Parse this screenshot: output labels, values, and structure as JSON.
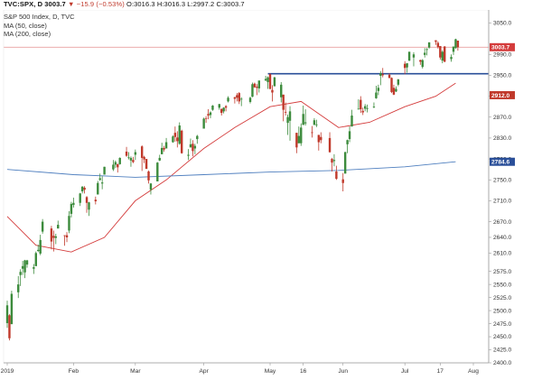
{
  "header": {
    "symbol": "TVC:SPX, D",
    "last": "3003.7",
    "change": "▼ −15.9 (−0.53%)",
    "ohlc": "O:3016.3 H:3016.3 L:2997.2 C:3003.7"
  },
  "legend": {
    "title": "S&P 500 Index, D, TVC",
    "ma50": "MA (50, close)",
    "ma200": "MA (200, close)"
  },
  "colors": {
    "up": "#3c8b3c",
    "down": "#c0392b",
    "ma50": "#d43c3c",
    "ma200": "#4f7fbf",
    "resistance": "#2a4f99",
    "price_line": "#e9a0a0"
  },
  "chart_data": {
    "type": "candlestick",
    "ylim": [
      2400,
      3075
    ],
    "yticks": [
      2400,
      2425,
      2450,
      2475,
      2500,
      2525,
      2550,
      2575,
      2610,
      2640,
      2670,
      2710,
      2750,
      2790,
      2830,
      2870,
      2910,
      2950,
      2990,
      3050
    ],
    "xticks": [
      "2019",
      "Feb",
      "Mar",
      "Apr",
      "May",
      "16",
      "Jun",
      "Jul",
      "17",
      "Aug"
    ],
    "x_axis_dates": [
      "2019-01-02",
      "2019-02-01",
      "2019-03-01",
      "2019-04-01",
      "2019-05-01",
      "2019-05-16",
      "2019-06-03",
      "2019-07-01",
      "2019-07-17",
      "2019-08-01"
    ],
    "price_labels": [
      {
        "text": "3003.7",
        "value": 3003.7,
        "color": "#d43c3c"
      },
      {
        "text": "2912.0",
        "value": 2912.0,
        "color": "#c0392b"
      },
      {
        "text": "2784.6",
        "value": 2784.6,
        "color": "#2a4f99"
      }
    ],
    "horizontal_lines": [
      {
        "name": "resistance",
        "value": 2953,
        "from": "2019-04-30",
        "to": "2019-07-31"
      },
      {
        "name": "last",
        "value": 3003.7
      }
    ],
    "series": [
      {
        "name": "MA (50, close)",
        "points": [
          [
            "2019-01-02",
            2680
          ],
          [
            "2019-01-15",
            2625
          ],
          [
            "2019-01-31",
            2612
          ],
          [
            "2019-02-15",
            2640
          ],
          [
            "2019-03-01",
            2710
          ],
          [
            "2019-03-15",
            2750
          ],
          [
            "2019-04-01",
            2810
          ],
          [
            "2019-04-15",
            2850
          ],
          [
            "2019-05-01",
            2890
          ],
          [
            "2019-05-15",
            2900
          ],
          [
            "2019-06-01",
            2850
          ],
          [
            "2019-06-15",
            2860
          ],
          [
            "2019-07-01",
            2890
          ],
          [
            "2019-07-15",
            2910
          ],
          [
            "2019-07-24",
            2935
          ]
        ]
      },
      {
        "name": "MA (200, close)",
        "points": [
          [
            "2019-01-02",
            2770
          ],
          [
            "2019-02-01",
            2760
          ],
          [
            "2019-03-01",
            2755
          ],
          [
            "2019-04-01",
            2760
          ],
          [
            "2019-05-01",
            2765
          ],
          [
            "2019-06-01",
            2768
          ],
          [
            "2019-07-01",
            2775
          ],
          [
            "2019-07-24",
            2784.6
          ]
        ]
      }
    ],
    "candles": [
      [
        "2019-01-02",
        2476,
        2519,
        2467,
        2510
      ],
      [
        "2019-01-03",
        2491,
        2493,
        2443,
        2447
      ],
      [
        "2019-01-04",
        2474,
        2538,
        2474,
        2532
      ],
      [
        "2019-01-07",
        2535,
        2566,
        2524,
        2550
      ],
      [
        "2019-01-08",
        2568,
        2579,
        2547,
        2574
      ],
      [
        "2019-01-09",
        2580,
        2595,
        2568,
        2585
      ],
      [
        "2019-01-10",
        2573,
        2597,
        2562,
        2596
      ],
      [
        "2019-01-11",
        2588,
        2597,
        2582,
        2596
      ],
      [
        "2019-01-14",
        2580,
        2589,
        2570,
        2583
      ],
      [
        "2019-01-15",
        2585,
        2613,
        2585,
        2610
      ],
      [
        "2019-01-16",
        2614,
        2626,
        2612,
        2616
      ],
      [
        "2019-01-17",
        2609,
        2645,
        2606,
        2635
      ],
      [
        "2019-01-18",
        2651,
        2675,
        2647,
        2670
      ],
      [
        "2019-01-22",
        2657,
        2662,
        2617,
        2632
      ],
      [
        "2019-01-23",
        2643,
        2653,
        2613,
        2639
      ],
      [
        "2019-01-24",
        2639,
        2647,
        2627,
        2642
      ],
      [
        "2019-01-25",
        2657,
        2672,
        2657,
        2664
      ],
      [
        "2019-01-28",
        2644,
        2644,
        2624,
        2643
      ],
      [
        "2019-01-29",
        2644,
        2650,
        2631,
        2640
      ],
      [
        "2019-01-30",
        2653,
        2690,
        2648,
        2681
      ],
      [
        "2019-01-31",
        2685,
        2708,
        2678,
        2704
      ],
      [
        "2019-02-01",
        2702,
        2716,
        2697,
        2706
      ],
      [
        "2019-02-04",
        2706,
        2725,
        2700,
        2724
      ],
      [
        "2019-02-05",
        2728,
        2738,
        2724,
        2737
      ],
      [
        "2019-02-06",
        2735,
        2738,
        2724,
        2731
      ],
      [
        "2019-02-07",
        2717,
        2719,
        2687,
        2706
      ],
      [
        "2019-02-08",
        2693,
        2708,
        2681,
        2707
      ],
      [
        "2019-02-11",
        2712,
        2718,
        2703,
        2709
      ],
      [
        "2019-02-12",
        2722,
        2748,
        2722,
        2744
      ],
      [
        "2019-02-13",
        2750,
        2762,
        2748,
        2753
      ],
      [
        "2019-02-14",
        2743,
        2757,
        2732,
        2745
      ],
      [
        "2019-02-15",
        2760,
        2775,
        2760,
        2775
      ],
      [
        "2019-02-19",
        2770,
        2788,
        2767,
        2779
      ],
      [
        "2019-02-20",
        2779,
        2787,
        2773,
        2784
      ],
      [
        "2019-02-21",
        2780,
        2781,
        2764,
        2774
      ],
      [
        "2019-02-22",
        2780,
        2793,
        2779,
        2792
      ],
      [
        "2019-02-25",
        2804,
        2813,
        2794,
        2796
      ],
      [
        "2019-02-26",
        2792,
        2803,
        2789,
        2793
      ],
      [
        "2019-02-27",
        2787,
        2795,
        2775,
        2792
      ],
      [
        "2019-02-28",
        2788,
        2794,
        2782,
        2784
      ],
      [
        "2019-03-01",
        2798,
        2808,
        2788,
        2803
      ],
      [
        "2019-03-04",
        2814,
        2816,
        2767,
        2792
      ],
      [
        "2019-03-05",
        2794,
        2796,
        2782,
        2789
      ],
      [
        "2019-03-06",
        2790,
        2790,
        2771,
        2771
      ],
      [
        "2019-03-07",
        2766,
        2768,
        2743,
        2749
      ],
      [
        "2019-03-08",
        2731,
        2744,
        2722,
        2743
      ],
      [
        "2019-03-11",
        2747,
        2784,
        2747,
        2783
      ],
      [
        "2019-03-12",
        2787,
        2798,
        2786,
        2792
      ],
      [
        "2019-03-13",
        2799,
        2821,
        2799,
        2811
      ],
      [
        "2019-03-14",
        2811,
        2815,
        2804,
        2808
      ],
      [
        "2019-03-15",
        2810,
        2830,
        2810,
        2822
      ],
      [
        "2019-03-18",
        2822,
        2835,
        2821,
        2833
      ],
      [
        "2019-03-19",
        2840,
        2852,
        2823,
        2832
      ],
      [
        "2019-03-20",
        2831,
        2843,
        2812,
        2824
      ],
      [
        "2019-03-21",
        2819,
        2860,
        2817,
        2854
      ],
      [
        "2019-03-22",
        2844,
        2846,
        2800,
        2801
      ],
      [
        "2019-03-25",
        2796,
        2809,
        2788,
        2798
      ],
      [
        "2019-03-26",
        2812,
        2829,
        2812,
        2818
      ],
      [
        "2019-03-27",
        2819,
        2826,
        2795,
        2805
      ],
      [
        "2019-03-28",
        2810,
        2819,
        2799,
        2815
      ],
      [
        "2019-03-29",
        2828,
        2836,
        2819,
        2834
      ],
      [
        "2019-04-01",
        2848,
        2869,
        2848,
        2867
      ],
      [
        "2019-04-02",
        2868,
        2872,
        2859,
        2867
      ],
      [
        "2019-04-03",
        2876,
        2885,
        2866,
        2873
      ],
      [
        "2019-04-04",
        2874,
        2881,
        2868,
        2879
      ],
      [
        "2019-04-05",
        2884,
        2893,
        2882,
        2892
      ],
      [
        "2019-04-08",
        2888,
        2895,
        2884,
        2895
      ],
      [
        "2019-04-09",
        2886,
        2886,
        2873,
        2878
      ],
      [
        "2019-04-10",
        2881,
        2889,
        2877,
        2888
      ],
      [
        "2019-04-11",
        2891,
        2893,
        2881,
        2888
      ],
      [
        "2019-04-12",
        2900,
        2910,
        2898,
        2907
      ],
      [
        "2019-04-15",
        2908,
        2909,
        2896,
        2905
      ],
      [
        "2019-04-16",
        2912,
        2916,
        2900,
        2907
      ],
      [
        "2019-04-17",
        2916,
        2918,
        2895,
        2900
      ],
      [
        "2019-04-18",
        2904,
        2908,
        2891,
        2905
      ],
      [
        "2019-04-22",
        2899,
        2909,
        2896,
        2907
      ],
      [
        "2019-04-23",
        2909,
        2936,
        2908,
        2933
      ],
      [
        "2019-04-24",
        2934,
        2936,
        2926,
        2927
      ],
      [
        "2019-04-25",
        2928,
        2933,
        2912,
        2926
      ],
      [
        "2019-04-26",
        2925,
        2939,
        2917,
        2940
      ],
      [
        "2019-04-29",
        2940,
        2949,
        2939,
        2943
      ],
      [
        "2019-04-30",
        2937,
        2948,
        2924,
        2946
      ],
      [
        "2019-05-01",
        2952,
        2954,
        2923,
        2924
      ],
      [
        "2019-05-02",
        2922,
        2931,
        2900,
        2917
      ],
      [
        "2019-05-03",
        2929,
        2947,
        2929,
        2946
      ],
      [
        "2019-05-06",
        2908,
        2937,
        2898,
        2932
      ],
      [
        "2019-05-07",
        2913,
        2913,
        2862,
        2884
      ],
      [
        "2019-05-08",
        2880,
        2898,
        2873,
        2879
      ],
      [
        "2019-05-09",
        2859,
        2875,
        2836,
        2870
      ],
      [
        "2019-05-10",
        2863,
        2891,
        2825,
        2881
      ],
      [
        "2019-05-13",
        2840,
        2840,
        2801,
        2812
      ],
      [
        "2019-05-14",
        2820,
        2852,
        2820,
        2834
      ],
      [
        "2019-05-15",
        2820,
        2858,
        2815,
        2850
      ],
      [
        "2019-05-16",
        2855,
        2892,
        2855,
        2876
      ],
      [
        "2019-05-17",
        2858,
        2885,
        2854,
        2860
      ],
      [
        "2019-05-20",
        2841,
        2853,
        2831,
        2840
      ],
      [
        "2019-05-21",
        2855,
        2868,
        2855,
        2864
      ],
      [
        "2019-05-22",
        2856,
        2865,
        2851,
        2856
      ],
      [
        "2019-05-23",
        2836,
        2836,
        2806,
        2822
      ],
      [
        "2019-05-24",
        2832,
        2841,
        2820,
        2826
      ],
      [
        "2019-05-28",
        2830,
        2841,
        2802,
        2803
      ],
      [
        "2019-05-29",
        2790,
        2792,
        2766,
        2783
      ],
      [
        "2019-05-30",
        2786,
        2799,
        2776,
        2788
      ],
      [
        "2019-05-31",
        2766,
        2777,
        2750,
        2752
      ],
      [
        "2019-06-03",
        2751,
        2763,
        2728,
        2744
      ],
      [
        "2019-06-04",
        2762,
        2804,
        2762,
        2803
      ],
      [
        "2019-06-05",
        2818,
        2827,
        2801,
        2826
      ],
      [
        "2019-06-06",
        2828,
        2852,
        2822,
        2843
      ],
      [
        "2019-06-07",
        2852,
        2884,
        2852,
        2873
      ],
      [
        "2019-06-10",
        2885,
        2904,
        2885,
        2886
      ],
      [
        "2019-06-11",
        2903,
        2910,
        2878,
        2885
      ],
      [
        "2019-06-12",
        2882,
        2888,
        2874,
        2879
      ],
      [
        "2019-06-13",
        2886,
        2895,
        2881,
        2891
      ],
      [
        "2019-06-14",
        2886,
        2894,
        2879,
        2887
      ],
      [
        "2019-06-17",
        2889,
        2898,
        2887,
        2890
      ],
      [
        "2019-06-18",
        2906,
        2930,
        2905,
        2917
      ],
      [
        "2019-06-19",
        2920,
        2932,
        2912,
        2926
      ],
      [
        "2019-06-20",
        2949,
        2958,
        2931,
        2954
      ],
      [
        "2019-06-21",
        2952,
        2964,
        2946,
        2950
      ],
      [
        "2019-06-24",
        2951,
        2954,
        2944,
        2945
      ],
      [
        "2019-06-25",
        2945,
        2946,
        2916,
        2918
      ],
      [
        "2019-06-26",
        2926,
        2932,
        2912,
        2913
      ],
      [
        "2019-06-27",
        2919,
        2929,
        2918,
        2924
      ],
      [
        "2019-06-28",
        2932,
        2943,
        2929,
        2942
      ],
      [
        "2019-07-01",
        2972,
        2977,
        2952,
        2964
      ],
      [
        "2019-07-02",
        2965,
        2973,
        2955,
        2973
      ],
      [
        "2019-07-03",
        2978,
        2995,
        2977,
        2995
      ],
      [
        "2019-07-05",
        2984,
        2994,
        2967,
        2990
      ],
      [
        "2019-07-08",
        2979,
        2980,
        2970,
        2976
      ],
      [
        "2019-07-09",
        2966,
        2981,
        2963,
        2979
      ],
      [
        "2019-07-10",
        2989,
        3002,
        2984,
        2993
      ],
      [
        "2019-07-11",
        2999,
        3002,
        2988,
        3000
      ],
      [
        "2019-07-12",
        3003,
        3013,
        3001,
        3013
      ],
      [
        "2019-07-15",
        3017,
        3017,
        3008,
        3014
      ],
      [
        "2019-07-16",
        3012,
        3015,
        3001,
        3004
      ],
      [
        "2019-07-17",
        3006,
        3006,
        2980,
        2984
      ],
      [
        "2019-07-18",
        2978,
        2998,
        2973,
        2995
      ],
      [
        "2019-07-19",
        3005,
        3006,
        2975,
        2976
      ],
      [
        "2019-07-22",
        2981,
        2990,
        2976,
        2985
      ],
      [
        "2019-07-23",
        2995,
        3005,
        2989,
        3005
      ],
      [
        "2019-07-24",
        3002,
        3020,
        3001,
        3019
      ],
      [
        "2019-07-25",
        3016.3,
        3016.3,
        2997.2,
        3003.7
      ]
    ]
  }
}
